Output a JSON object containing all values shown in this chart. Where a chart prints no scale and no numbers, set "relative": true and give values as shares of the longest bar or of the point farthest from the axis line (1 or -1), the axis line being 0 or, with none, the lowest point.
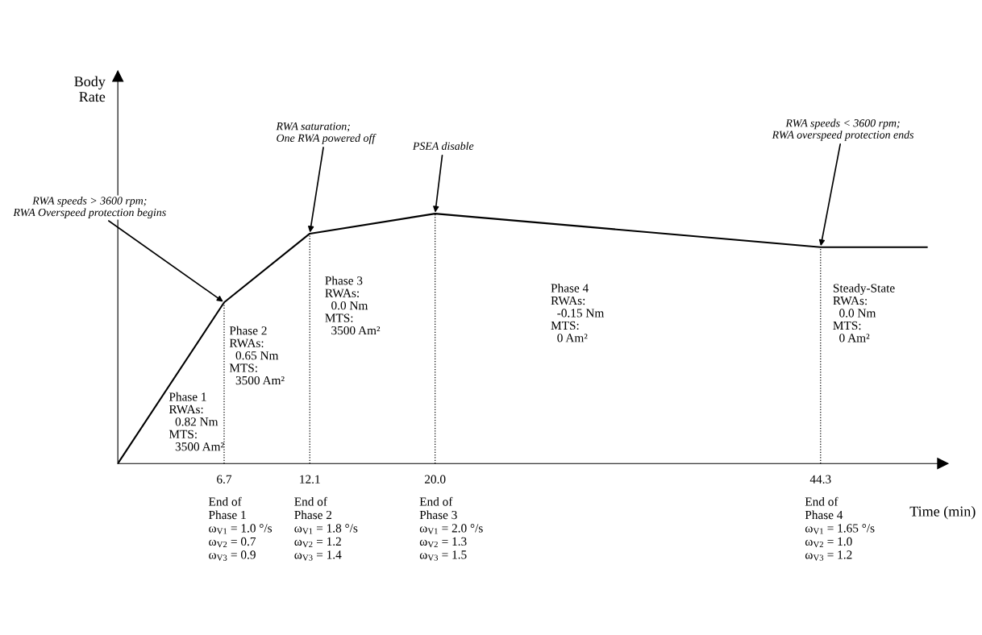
{
  "chart_data": {
    "type": "line",
    "relative": true,
    "xlabel": "Time (min)",
    "xlim": [
      0,
      52
    ],
    "xticks": [
      6.7,
      12.1,
      {
        "value": 20.0,
        "label": "20.0"
      },
      44.3
    ],
    "tick_labels": "x",
    "series": [
      {
        "color": "#000000",
        "x": [
          0,
          6.7,
          12.1,
          20.0,
          44.3,
          51
        ],
        "values": [
          0,
          0.645,
          0.92,
          1,
          0.866,
          0.866
        ]
      }
    ],
    "ref_lines": [
      {
        "axis": "x",
        "value": 6.7,
        "line_style": "dotted",
        "color": "#000000"
      },
      {
        "axis": "x",
        "value": 12.1,
        "line_style": "dotted",
        "color": "#000000"
      },
      {
        "axis": "x",
        "value": 20.0,
        "line_style": "dotted",
        "color": "#000000"
      },
      {
        "axis": "x",
        "value": 44.3,
        "line_style": "dotted",
        "color": "#000000"
      }
    ],
    "annotations": [
      {
        "text": "RWA speeds > 3600 rpm;\nRWA Overspeed protection begins",
        "x": 6.7,
        "y": 0.645
      },
      {
        "text": "RWA saturation;\nOne RWA powered off",
        "x": 12.1,
        "y": 0.92
      },
      {
        "text": "PSEA disable",
        "x": 20.0,
        "y": 1
      },
      {
        "text": "RWA speeds < 3600 rpm;\nRWA overspeed protection ends",
        "x": 44.3,
        "y": 0.866
      },
      "Phase 1\nRWAs:\n  0.82 Nm\nMTS:\n  3500 Am²",
      "Phase 2\nRWAs:\n  0.65 Nm\nMTS:\n  3500 Am²",
      "Phase 3\nRWAs:\n  0.0 Nm\nMTS:\n  3500 Am²",
      "Phase 4\nRWAs:\n  -0.15 Nm\nMTS:\n  0 Am²",
      "Steady-State\nRWAs:\n  0.0 Nm\nMTS:\n  0 Am²",
      "End of\nPhase 1\nω$_{V1}$ = 1.0 °/s\nω$_{V2}$ = 0.7\nω$_{V3}$ = 0.9",
      "End of\nPhase 2\nω$_{V1}$ = 1.8 °/s\nω$_{V2}$ = 1.2\nω$_{V3}$ = 1.4",
      "End of\nPhase 3\nω$_{V1}$ = 2.0 °/s\nω$_{V2}$ = 1.3\nω$_{V3}$ = 1.5",
      "End of\nPhase 4\nω$_{V1}$ = 1.65 °/s\nω$_{V2}$ = 1.0\nω$_{V3}$ = 1.2",
      "Body\nRate"
    ]
  }
}
